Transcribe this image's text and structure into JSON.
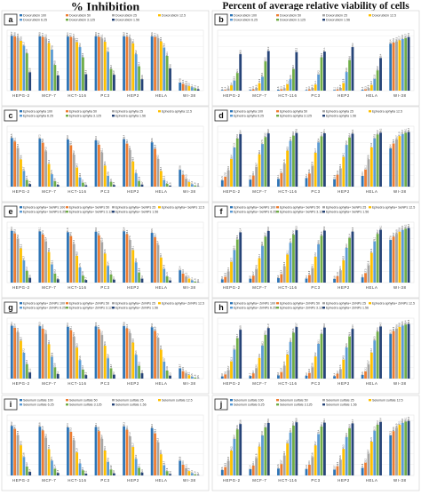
{
  "titles": {
    "left": "% Inhibition",
    "right": "Percent of average relative viability of cells"
  },
  "colors": [
    "#2e75b6",
    "#ed7d31",
    "#a5a5a5",
    "#ffc000",
    "#5b9bd5",
    "#70ad47",
    "#264478"
  ],
  "chart_data": [
    {
      "panel": "a",
      "type": "bar",
      "ylim": [
        0,
        110
      ],
      "categories": [
        "HEPG-2",
        "MCF-7",
        "HCT-116",
        "PC3",
        "HEP2",
        "HELA",
        "WI-38"
      ],
      "series": [
        {
          "name": "Doxorubicin 100",
          "values": [
            99.7,
            98.8,
            98.4,
            98.9,
            98.9,
            98.6,
            14.6
          ]
        },
        {
          "name": "Doxorubicin 50",
          "values": [
            98.6,
            97.7,
            97.7,
            97.8,
            97.9,
            97.7,
            12.4
          ]
        },
        {
          "name": "Doxorubicin 25",
          "values": [
            96.3,
            95.2,
            95.7,
            95.1,
            95.1,
            95.4,
            10.5
          ]
        },
        {
          "name": "Doxorubicin 12.5",
          "values": [
            90.6,
            86.4,
            88.3,
            88.9,
            86.1,
            89.6,
            8.3
          ]
        },
        {
          "name": "Doxorubicin 6.25",
          "values": [
            81.7,
            74.6,
            79.2,
            70.8,
            66.2,
            78.5,
            6.1
          ]
        },
        {
          "name": "Doxorubicin 3.125",
          "values": [
            67.9,
            46.8,
            60.6,
            39.4,
            44.4,
            63.1,
            4.3
          ]
        },
        {
          "name": "Doxorubicin 1.56",
          "values": [
            33.5,
            27.8,
            29.8,
            28.9,
            20.8,
            40.6,
            2.5
          ]
        }
      ]
    },
    {
      "panel": "b",
      "type": "bar",
      "ylim": [
        0,
        110
      ],
      "categories": [
        "HEPG-2",
        "MCF-7",
        "HCT-116",
        "PC3",
        "HEP2",
        "HELA",
        "WI-38"
      ],
      "series": [
        {
          "name": "Doxorubicin 100",
          "values": [
            1.2,
            1.2,
            1.6,
            1.1,
            1.1,
            1.4,
            85.4
          ]
        },
        {
          "name": "Doxorubicin 50",
          "values": [
            1.4,
            2.3,
            2.3,
            2.2,
            2.1,
            2.3,
            87.6
          ]
        },
        {
          "name": "Doxorubicin 25",
          "values": [
            3.7,
            4.8,
            4.3,
            4.9,
            4.9,
            4.6,
            89.5
          ]
        },
        {
          "name": "Doxorubicin 12.5",
          "values": [
            9.4,
            13.6,
            11.7,
            11.1,
            13.9,
            10.4,
            91.7
          ]
        },
        {
          "name": "Doxorubicin 6.25",
          "values": [
            18.3,
            25.4,
            20.8,
            29.2,
            33.8,
            21.5,
            93.9
          ]
        },
        {
          "name": "Doxorubicin 3.125",
          "values": [
            32.1,
            53.2,
            39.4,
            60.6,
            55.6,
            36.9,
            95.7
          ]
        },
        {
          "name": "Doxorubicin 1.56",
          "values": [
            66.5,
            72.2,
            70.2,
            71.1,
            79.2,
            59.4,
            97.5
          ]
        }
      ]
    },
    {
      "panel": "c",
      "type": "bar",
      "ylim": [
        0,
        110
      ],
      "categories": [
        "HEPG-2",
        "MCF-7",
        "HCT-116",
        "PC3",
        "HEP2",
        "HELA",
        "WI-38"
      ],
      "series": [
        {
          "name": "Ephedra aphylla 100",
          "values": [
            88.5,
            87.2,
            85.9,
            84.3,
            86.4,
            80.6,
            30.6
          ]
        },
        {
          "name": "Ephedra aphylla 50",
          "values": [
            82.1,
            79.8,
            75.3,
            76.2,
            78.4,
            68.9,
            21.5
          ]
        },
        {
          "name": "Ephedra aphylla 25",
          "values": [
            70.4,
            64.3,
            58.2,
            62.1,
            66.7,
            50.2,
            14.3
          ]
        },
        {
          "name": "Ephedra aphylla 12.5",
          "values": [
            49.6,
            41.2,
            34.7,
            38.3,
            45.9,
            28.4,
            8.1
          ]
        },
        {
          "name": "Ephedra aphylla 6.25",
          "values": [
            28.7,
            22.5,
            16.8,
            19.6,
            24.1,
            12.2,
            4.3
          ]
        },
        {
          "name": "Ephedra aphylla 3.125",
          "values": [
            12.4,
            9.8,
            7.2,
            8.5,
            10.6,
            5.1,
            1.9
          ]
        },
        {
          "name": "Ephedra aphylla 1.56",
          "values": [
            4.6,
            3.1,
            2.4,
            2.9,
            3.7,
            1.8,
            0.6
          ]
        }
      ]
    },
    {
      "panel": "d",
      "type": "bar",
      "ylim": [
        0,
        110
      ],
      "categories": [
        "HEPG-2",
        "MCF-7",
        "HCT-116",
        "PC3",
        "HEP2",
        "HELA",
        "WI-38"
      ],
      "series": [
        {
          "name": "Ephedra aphylla 100",
          "values": [
            11.5,
            12.8,
            14.1,
            15.7,
            13.6,
            19.4,
            69.4
          ]
        },
        {
          "name": "Ephedra aphylla 50",
          "values": [
            17.9,
            20.2,
            24.7,
            23.8,
            21.6,
            31.1,
            78.5
          ]
        },
        {
          "name": "Ephedra aphylla 25",
          "values": [
            29.6,
            35.7,
            41.8,
            37.9,
            33.3,
            49.8,
            85.7
          ]
        },
        {
          "name": "Ephedra aphylla 12.5",
          "values": [
            50.4,
            58.8,
            65.3,
            61.7,
            54.1,
            71.6,
            91.9
          ]
        },
        {
          "name": "Ephedra aphylla 6.25",
          "values": [
            71.3,
            77.5,
            83.2,
            80.4,
            75.9,
            87.8,
            95.7
          ]
        },
        {
          "name": "Ephedra aphylla 3.125",
          "values": [
            87.6,
            90.2,
            92.8,
            91.5,
            89.4,
            94.9,
            98.1
          ]
        },
        {
          "name": "Ephedra aphylla 1.56",
          "values": [
            95.4,
            96.9,
            97.6,
            97.1,
            96.3,
            98.2,
            99.4
          ]
        }
      ]
    },
    {
      "panel": "e",
      "type": "bar",
      "ylim": [
        0,
        110
      ],
      "categories": [
        "HEPG-2",
        "MCF-7",
        "HCT-116",
        "PC3",
        "HEP2",
        "HELA",
        "WI-38"
      ],
      "series": [
        {
          "name": "Ephedra aphylla+ SeNPs 100",
          "values": [
            94.2,
            93.1,
            91.8,
            92.6,
            93.4,
            90.5,
            22.4
          ]
        },
        {
          "name": "Ephedra aphylla+ SeNPs 50",
          "values": [
            89.5,
            87.3,
            84.6,
            86.1,
            88.2,
            82.7,
            16.3
          ]
        },
        {
          "name": "Ephedra aphylla+ SeNPs 25",
          "values": [
            79.8,
            75.4,
            70.2,
            73.9,
            77.6,
            68.4,
            11.2
          ]
        },
        {
          "name": "Ephedra aphylla+ SeNPs 12.5",
          "values": [
            62.3,
            55.6,
            48.9,
            52.8,
            59.1,
            45.7,
            7.4
          ]
        },
        {
          "name": "Ephedra aphylla+ SeNPs 6.25",
          "values": [
            40.7,
            33.2,
            27.5,
            30.4,
            36.8,
            24.9,
            4.1
          ]
        },
        {
          "name": "Ephedra aphylla+ SeNPs 3.125",
          "values": [
            21.4,
            16.3,
            12.8,
            14.7,
            18.6,
            11.3,
            1.8
          ]
        },
        {
          "name": "Ephedra aphylla+ SeNPs 1.56",
          "values": [
            8.6,
            6.1,
            4.7,
            5.4,
            7.2,
            3.9,
            0.6
          ]
        }
      ]
    },
    {
      "panel": "f",
      "type": "bar",
      "ylim": [
        0,
        110
      ],
      "categories": [
        "HEPG-2",
        "MCF-7",
        "HCT-116",
        "PC3",
        "HEP2",
        "HELA",
        "WI-38"
      ],
      "series": [
        {
          "name": "Ephedra aphylla+ SeNPs 100",
          "values": [
            5.8,
            6.9,
            8.2,
            7.4,
            6.6,
            9.5,
            77.6
          ]
        },
        {
          "name": "Ephedra aphylla+ SeNPs 50",
          "values": [
            10.5,
            12.7,
            15.4,
            13.9,
            11.8,
            17.3,
            83.7
          ]
        },
        {
          "name": "Ephedra aphylla+ SeNPs 25",
          "values": [
            20.2,
            24.6,
            29.8,
            26.1,
            22.4,
            31.6,
            88.8
          ]
        },
        {
          "name": "Ephedra aphylla+ SeNPs 12.5",
          "values": [
            37.7,
            44.4,
            51.1,
            47.2,
            40.9,
            54.3,
            92.6
          ]
        },
        {
          "name": "Ephedra aphylla+ SeNPs 6.25",
          "values": [
            59.3,
            66.8,
            72.5,
            69.6,
            63.2,
            75.1,
            95.9
          ]
        },
        {
          "name": "Ephedra aphylla+ SeNPs 3.125",
          "values": [
            78.6,
            83.7,
            87.2,
            85.3,
            81.4,
            88.7,
            98.2
          ]
        },
        {
          "name": "Ephedra aphylla+ SeNPs 1.56",
          "values": [
            91.4,
            93.9,
            95.3,
            94.6,
            92.8,
            96.1,
            99.4
          ]
        }
      ]
    },
    {
      "panel": "g",
      "type": "bar",
      "ylim": [
        0,
        110
      ],
      "categories": [
        "HEPG-2",
        "MCF-7",
        "HCT-116",
        "PC3",
        "HEP2",
        "HELA",
        "WI-38"
      ],
      "series": [
        {
          "name": "Ephedra aphylla+ ZnNPs 100",
          "values": [
            96.1,
            95.3,
            94.2,
            94.8,
            95.6,
            93.4,
            18.7
          ]
        },
        {
          "name": "Ephedra aphylla+ ZnNPs 50",
          "values": [
            92.4,
            90.6,
            88.1,
            89.7,
            91.3,
            86.9,
            13.5
          ]
        },
        {
          "name": "Ephedra aphylla+ ZnNPs 25",
          "values": [
            84.3,
            80.9,
            76.5,
            79.2,
            82.7,
            74.3,
            9.4
          ]
        },
        {
          "name": "Ephedra aphylla+ ZnNPs 12.5",
          "values": [
            68.7,
            62.4,
            56.3,
            59.8,
            65.5,
            52.6,
            6.2
          ]
        },
        {
          "name": "Ephedra aphylla+ ZnNPs 6.25",
          "values": [
            47.2,
            39.8,
            33.6,
            36.9,
            43.4,
            30.7,
            3.5
          ]
        },
        {
          "name": "Ephedra aphylla+ ZnNPs 3.125",
          "values": [
            26.3,
            20.5,
            16.4,
            18.7,
            23.2,
            14.6,
            1.6
          ]
        },
        {
          "name": "Ephedra aphylla+ ZnNPs 1.56",
          "values": [
            11.2,
            8.1,
            6.3,
            7.2,
            9.6,
            5.3,
            0.5
          ]
        }
      ]
    },
    {
      "panel": "h",
      "type": "bar",
      "ylim": [
        0,
        110
      ],
      "categories": [
        "HEPG-2",
        "MCF-7",
        "HCT-116",
        "PC3",
        "HEP2",
        "HELA",
        "WI-38"
      ],
      "series": [
        {
          "name": "Ephedra aphylla+ ZnNPs 100",
          "values": [
            3.9,
            4.7,
            5.8,
            5.2,
            4.4,
            6.6,
            81.3
          ]
        },
        {
          "name": "Ephedra aphylla+ ZnNPs 50",
          "values": [
            7.6,
            9.4,
            11.9,
            10.3,
            8.7,
            13.1,
            86.5
          ]
        },
        {
          "name": "Ephedra aphylla+ ZnNPs 25",
          "values": [
            15.7,
            19.1,
            23.5,
            20.8,
            17.3,
            25.7,
            90.6
          ]
        },
        {
          "name": "Ephedra aphylla+ ZnNPs 12.5",
          "values": [
            31.3,
            37.6,
            43.7,
            40.2,
            34.5,
            47.4,
            93.8
          ]
        },
        {
          "name": "Ephedra aphylla+ ZnNPs 6.25",
          "values": [
            52.8,
            60.2,
            66.4,
            63.1,
            56.6,
            69.3,
            96.5
          ]
        },
        {
          "name": "Ephedra aphylla+ ZnNPs 3.125",
          "values": [
            73.7,
            79.5,
            83.6,
            81.3,
            76.8,
            85.4,
            98.4
          ]
        },
        {
          "name": "Ephedra aphylla+ ZnNPs 1.56",
          "values": [
            88.8,
            91.9,
            93.7,
            92.8,
            90.4,
            94.7,
            99.5
          ]
        }
      ]
    },
    {
      "panel": "i",
      "type": "bar",
      "ylim": [
        0,
        110
      ],
      "categories": [
        "HEPG-2",
        "MCF-7",
        "HCT-116",
        "PC3",
        "HEP2",
        "HELA",
        "WI-38"
      ],
      "series": [
        {
          "name": "Selenium sulfate 100",
          "values": [
            90.2,
            88.6,
            87.4,
            88.1,
            89.3,
            86.2,
            26.8
          ]
        },
        {
          "name": "Selenium sulfate 50",
          "values": [
            84.7,
            81.9,
            79.3,
            80.6,
            83.1,
            76.8,
            19.4
          ]
        },
        {
          "name": "Selenium sulfate 25",
          "values": [
            73.5,
            68.2,
            63.7,
            66.4,
            71.2,
            60.3,
            13.1
          ]
        },
        {
          "name": "Selenium sulfate 12.5",
          "values": [
            54.8,
            47.6,
            41.9,
            45.3,
            51.7,
            38.5,
            7.9
          ]
        },
        {
          "name": "Selenium sulfate 6.25",
          "values": [
            33.6,
            27.1,
            21.8,
            24.6,
            30.2,
            18.7,
            4.2
          ]
        },
        {
          "name": "Selenium sulfate 3.125",
          "values": [
            16.2,
            12.4,
            9.3,
            10.9,
            14.1,
            7.8,
            1.9
          ]
        },
        {
          "name": "Selenium sulfate 1.56",
          "values": [
            6.4,
            4.5,
            3.2,
            3.9,
            5.3,
            2.6,
            0.7
          ]
        }
      ]
    },
    {
      "panel": "j",
      "type": "bar",
      "ylim": [
        0,
        110
      ],
      "categories": [
        "HEPG-2",
        "MCF-7",
        "HCT-116",
        "PC3",
        "HEP2",
        "HELA",
        "WI-38"
      ],
      "series": [
        {
          "name": "Selenium sulfate 100",
          "values": [
            9.8,
            11.4,
            12.6,
            11.9,
            10.7,
            13.8,
            73.2
          ]
        },
        {
          "name": "Selenium sulfate 50",
          "values": [
            15.3,
            18.1,
            20.7,
            19.4,
            16.9,
            23.2,
            80.6
          ]
        },
        {
          "name": "Selenium sulfate 25",
          "values": [
            26.5,
            31.8,
            36.3,
            33.6,
            28.8,
            39.7,
            86.9
          ]
        },
        {
          "name": "Selenium sulfate 12.5",
          "values": [
            45.2,
            52.4,
            58.1,
            54.7,
            48.3,
            61.5,
            92.1
          ]
        },
        {
          "name": "Selenium sulfate 6.25",
          "values": [
            66.4,
            72.9,
            78.2,
            75.4,
            69.8,
            81.3,
            95.8
          ]
        },
        {
          "name": "Selenium sulfate 3.125",
          "values": [
            83.8,
            87.6,
            90.7,
            89.1,
            85.9,
            92.2,
            98.1
          ]
        },
        {
          "name": "Selenium sulfate 1.56",
          "values": [
            93.6,
            95.5,
            96.8,
            96.1,
            94.7,
            97.4,
            99.3
          ]
        }
      ]
    }
  ]
}
